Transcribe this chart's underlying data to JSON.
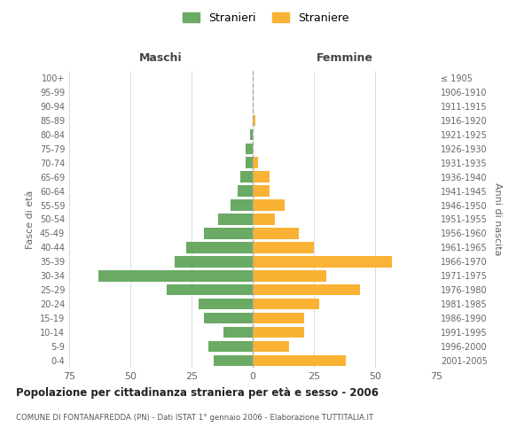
{
  "age_groups_bottom_to_top": [
    "0-4",
    "5-9",
    "10-14",
    "15-19",
    "20-24",
    "25-29",
    "30-34",
    "35-39",
    "40-44",
    "45-49",
    "50-54",
    "55-59",
    "60-64",
    "65-69",
    "70-74",
    "75-79",
    "80-84",
    "85-89",
    "90-94",
    "95-99",
    "100+"
  ],
  "birth_years_bottom_to_top": [
    "2001-2005",
    "1996-2000",
    "1991-1995",
    "1986-1990",
    "1981-1985",
    "1976-1980",
    "1971-1975",
    "1966-1970",
    "1961-1965",
    "1956-1960",
    "1951-1955",
    "1946-1950",
    "1941-1945",
    "1936-1940",
    "1931-1935",
    "1926-1930",
    "1921-1925",
    "1916-1920",
    "1911-1915",
    "1906-1910",
    "≤ 1905"
  ],
  "maschi_bottom_to_top": [
    16,
    18,
    12,
    20,
    22,
    35,
    63,
    32,
    27,
    20,
    14,
    9,
    6,
    5,
    3,
    3,
    1,
    0,
    0,
    0,
    0
  ],
  "femmine_bottom_to_top": [
    38,
    15,
    21,
    21,
    27,
    44,
    30,
    57,
    25,
    19,
    9,
    13,
    7,
    7,
    2,
    0,
    0,
    1,
    0,
    0,
    0
  ],
  "maschi_color": "#6aaa64",
  "femmine_color": "#f9b233",
  "grid_color": "#cccccc",
  "title": "Popolazione per cittadinanza straniera per età e sesso - 2006",
  "subtitle": "COMUNE DI FONTANAFREDDA (PN) - Dati ISTAT 1° gennaio 2006 - Elaborazione TUTTITALIA.IT",
  "xlabel_left": "Maschi",
  "xlabel_right": "Femmine",
  "ylabel_left": "Fasce di età",
  "ylabel_right": "Anni di nascita",
  "legend_stranieri": "Stranieri",
  "legend_straniere": "Straniere",
  "xlim": 75,
  "dashed_line_color": "#aaaaaa",
  "xtick_labels": [
    "75",
    "50",
    "25",
    "0",
    "25",
    "50",
    "75"
  ],
  "xtick_vals": [
    -75,
    -50,
    -25,
    0,
    25,
    50,
    75
  ]
}
